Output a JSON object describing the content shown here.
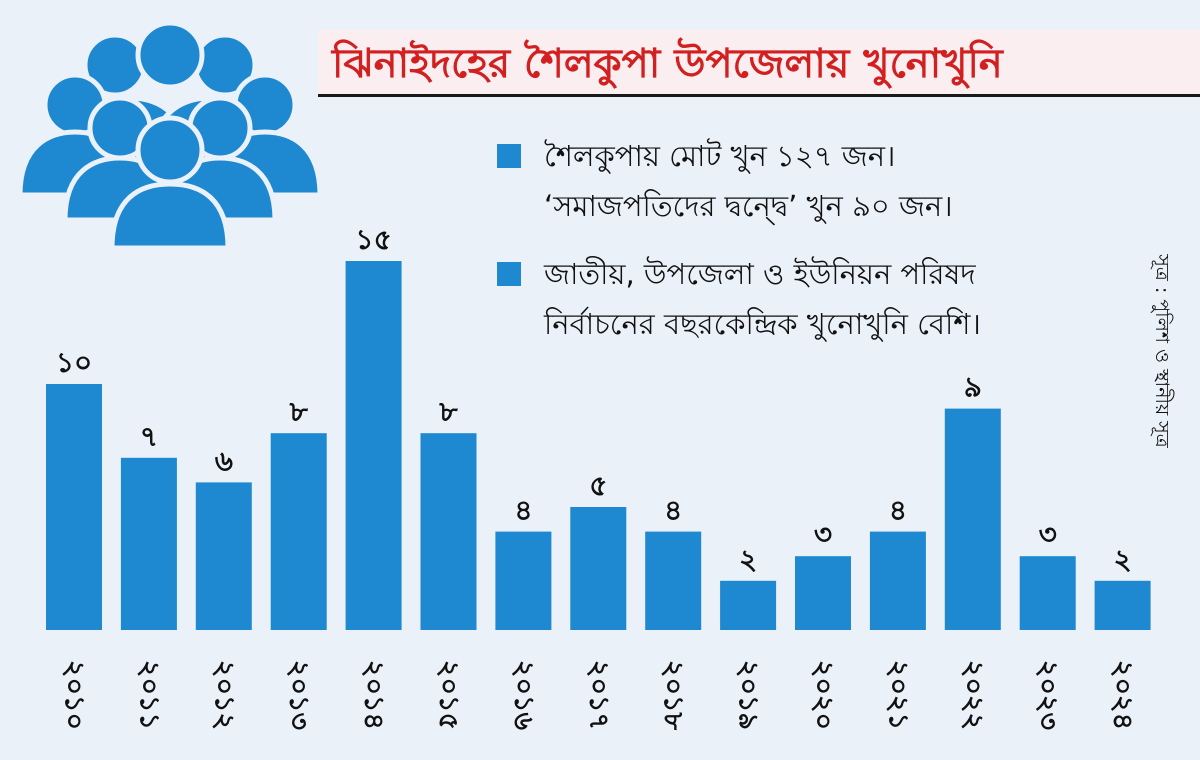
{
  "title": "ঝিনাইদহের শৈলকুপা উপজেলায় খুনোখুনি",
  "legend": {
    "item1": {
      "line1": "শৈলকুপায় মোট খুন ১২৭ জন।",
      "line2": "‘সমাজপতিদের দ্বন্দ্বে’ খুন ৯০ জন।"
    },
    "item2": {
      "line1": "জাতীয়, উপজেলা ও ইউনিয়ন পরিষদ",
      "line2": "নির্বাচনের বছরকেন্দ্রিক খুনোখুনি বেশি।"
    }
  },
  "source": "সূত্র : পুলিশ ও স্থানীয় সূত্র",
  "colors": {
    "bar": "#1e88d0",
    "title": "#d21f1f",
    "icon": "#1e88d0"
  },
  "chart_data": {
    "type": "bar",
    "categories": [
      "২০১০",
      "২০১১",
      "২০১২",
      "২০১৩",
      "২০১৪",
      "২০১৫",
      "২০১৬",
      "২০১৭",
      "২০১৮",
      "২০১৯",
      "২০২০",
      "২০২১",
      "২০২২",
      "২০২৩",
      "২০২৪"
    ],
    "values": [
      10,
      7,
      6,
      8,
      15,
      8,
      4,
      5,
      4,
      2,
      3,
      4,
      9,
      3,
      2
    ],
    "value_labels": [
      "১০",
      "৭",
      "৬",
      "৮",
      "১৫",
      "৮",
      "৪",
      "৫",
      "৪",
      "২",
      "৩",
      "৪",
      "৯",
      "৩",
      "২"
    ],
    "ylim": [
      0,
      15
    ],
    "grid": false,
    "axes_visible": false
  }
}
